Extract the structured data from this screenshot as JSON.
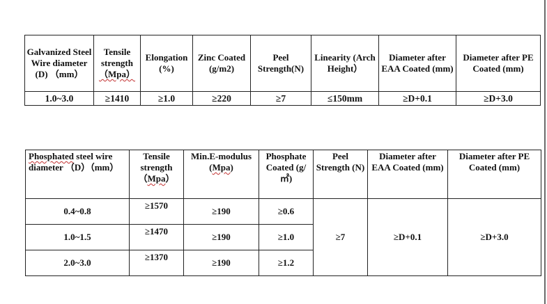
{
  "table1": {
    "headers": [
      "Galvanized Steel Wire diameter (D) （mm）",
      "Tensile strength （Mpa）",
      "Elongation (%)",
      "Zinc Coated (g/m2)",
      "Peel Strength(N)",
      "Linearity (Arch Height）",
      "Diameter after EAA Coated (mm)",
      "Diameter after PE Coated (mm)"
    ],
    "row": [
      "1.0~3.0",
      "≥1410",
      "≥1.0",
      "≥220",
      "≥7",
      "≤150mm",
      "≥D+0.1",
      "≥D+3.0"
    ]
  },
  "table2": {
    "headers": [
      "Phosphated steel wire diameter （D）（mm）",
      "Tensile strength （Mpa）",
      "Min.E-modulus (Mpa)",
      "Phosphate Coated (g/㎡)",
      "Peel Strength (N)",
      "Diameter after EAA Coated (mm)",
      "Diameter after PE Coated (mm)"
    ],
    "rows": [
      {
        "diameter": "0.4~0.8",
        "tensile": "≥1570",
        "modulus": "≥190",
        "phosphate": "≥0.6"
      },
      {
        "diameter": "1.0~1.5",
        "tensile": "≥1470",
        "modulus": "≥190",
        "phosphate": "≥1.0"
      },
      {
        "diameter": "2.0~3.0",
        "tensile": "≥1370",
        "modulus": "≥190",
        "phosphate": "≥1.2"
      }
    ],
    "peel": "≥7",
    "eaa": "≥D+0.1",
    "pe": "≥D+3.0"
  }
}
